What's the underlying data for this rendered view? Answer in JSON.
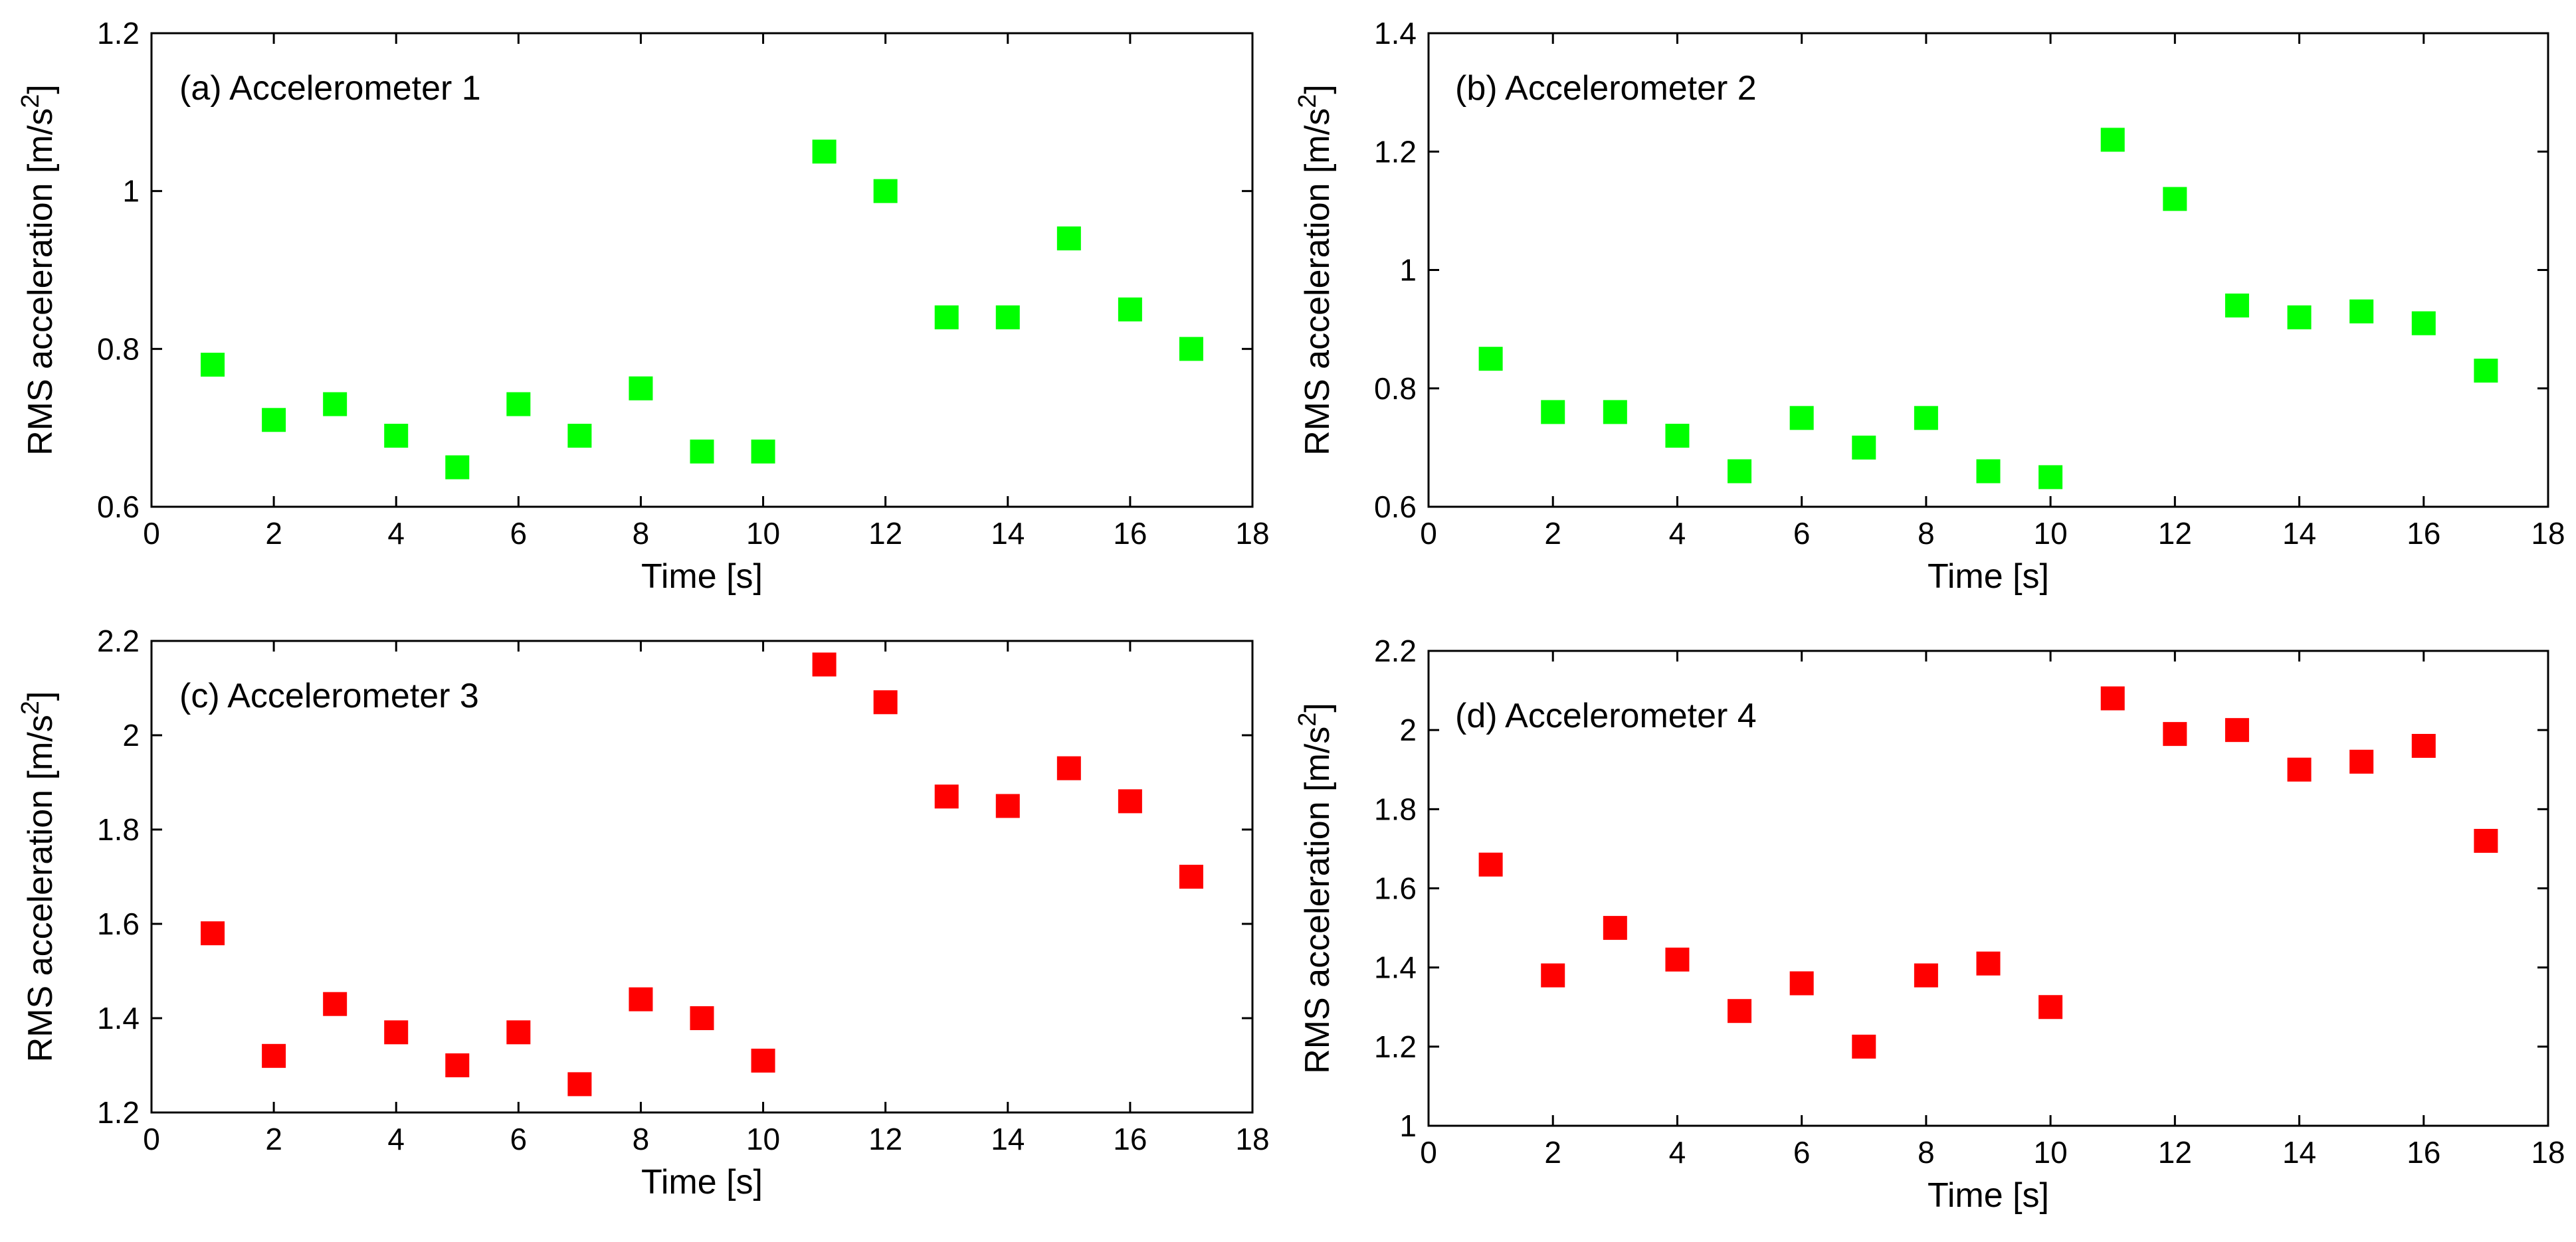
{
  "chart_data": [
    {
      "type": "scatter",
      "title": "(a) Accelerometer 1",
      "xlabel": "Time [s]",
      "ylabel": "RMS acceleration [m/s",
      "ylabel_superscript": "2",
      "ylabel_suffix": "]",
      "xlim": [
        0,
        18
      ],
      "ylim": [
        0.6,
        1.2
      ],
      "xticks": [
        0,
        2,
        4,
        6,
        8,
        10,
        12,
        14,
        16,
        18
      ],
      "yticks": [
        0.6,
        0.8,
        1,
        1.2
      ],
      "ytick_labels": [
        "0.6",
        "0.8",
        "1",
        "1.2"
      ],
      "marker_color": "#00ff00",
      "series": [
        {
          "name": "Accelerometer 1",
          "x": [
            1,
            2,
            3,
            4,
            5,
            6,
            7,
            8,
            9,
            10,
            11,
            12,
            13,
            14,
            15,
            16,
            17
          ],
          "y": [
            0.78,
            0.71,
            0.73,
            0.69,
            0.65,
            0.73,
            0.69,
            0.75,
            0.67,
            0.67,
            1.05,
            1.0,
            0.84,
            0.84,
            0.94,
            0.85,
            0.8
          ]
        }
      ]
    },
    {
      "type": "scatter",
      "title": "(b) Accelerometer 2",
      "xlabel": "Time [s]",
      "ylabel": "RMS acceleration [m/s",
      "ylabel_superscript": "2",
      "ylabel_suffix": "]",
      "xlim": [
        0,
        18
      ],
      "ylim": [
        0.6,
        1.4
      ],
      "xticks": [
        0,
        2,
        4,
        6,
        8,
        10,
        12,
        14,
        16,
        18
      ],
      "yticks": [
        0.6,
        0.8,
        1,
        1.2,
        1.4
      ],
      "ytick_labels": [
        "0.6",
        "0.8",
        "1",
        "1.2",
        "1.4"
      ],
      "marker_color": "#00ff00",
      "series": [
        {
          "name": "Accelerometer 2",
          "x": [
            1,
            2,
            3,
            4,
            5,
            6,
            7,
            8,
            9,
            10,
            11,
            12,
            13,
            14,
            15,
            16,
            17
          ],
          "y": [
            0.85,
            0.76,
            0.76,
            0.72,
            0.66,
            0.75,
            0.7,
            0.75,
            0.66,
            0.65,
            1.22,
            1.12,
            0.94,
            0.92,
            0.93,
            0.91,
            0.83
          ]
        }
      ]
    },
    {
      "type": "scatter",
      "title": "(c) Accelerometer 3",
      "xlabel": "Time [s]",
      "ylabel": "RMS acceleration [m/s",
      "ylabel_superscript": "2",
      "ylabel_suffix": "]",
      "xlim": [
        0,
        18
      ],
      "ylim": [
        1.2,
        2.2
      ],
      "xticks": [
        0,
        2,
        4,
        6,
        8,
        10,
        12,
        14,
        16,
        18
      ],
      "yticks": [
        1.2,
        1.4,
        1.6,
        1.8,
        2,
        2.2
      ],
      "ytick_labels": [
        "1.2",
        "1.4",
        "1.6",
        "1.8",
        "2",
        "2.2"
      ],
      "marker_color": "#ff0000",
      "series": [
        {
          "name": "Accelerometer 3",
          "x": [
            1,
            2,
            3,
            4,
            5,
            6,
            7,
            8,
            9,
            10,
            11,
            12,
            13,
            14,
            15,
            16,
            17
          ],
          "y": [
            1.58,
            1.32,
            1.43,
            1.37,
            1.3,
            1.37,
            1.26,
            1.44,
            1.4,
            1.31,
            2.15,
            2.07,
            1.87,
            1.85,
            1.93,
            1.86,
            1.7
          ]
        }
      ]
    },
    {
      "type": "scatter",
      "title": "(d) Accelerometer 4",
      "xlabel": "Time [s]",
      "ylabel": "RMS acceleration [m/s",
      "ylabel_superscript": "2",
      "ylabel_suffix": "]",
      "xlim": [
        0,
        18
      ],
      "ylim": [
        1,
        2.2
      ],
      "xticks": [
        0,
        2,
        4,
        6,
        8,
        10,
        12,
        14,
        16,
        18
      ],
      "yticks": [
        1,
        1.2,
        1.4,
        1.6,
        1.8,
        2,
        2.2
      ],
      "ytick_labels": [
        "1",
        "1.2",
        "1.4",
        "1.6",
        "1.8",
        "2",
        "2.2"
      ],
      "marker_color": "#ff0000",
      "series": [
        {
          "name": "Accelerometer 4",
          "x": [
            1,
            2,
            3,
            4,
            5,
            6,
            7,
            8,
            9,
            10,
            11,
            12,
            13,
            14,
            15,
            16,
            17
          ],
          "y": [
            1.66,
            1.38,
            1.5,
            1.42,
            1.29,
            1.36,
            1.2,
            1.38,
            1.41,
            1.3,
            2.08,
            1.99,
            2.0,
            1.9,
            1.92,
            1.96,
            1.72
          ]
        }
      ]
    }
  ]
}
